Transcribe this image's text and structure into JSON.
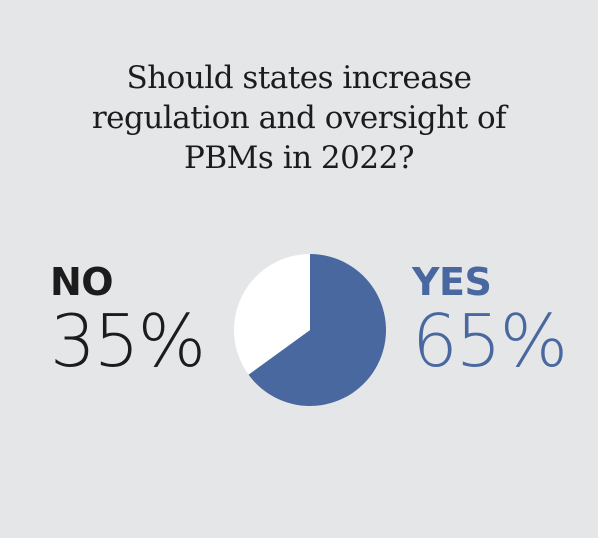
{
  "title_lines": [
    "Should states increase",
    "regulation and oversight of",
    "PBMs in 2022?"
  ],
  "colors": {
    "background": "#e5e6e8",
    "no": "#1c1c1c",
    "yes": "#4a68a0",
    "no_slice": "#ffffff",
    "yes_slice": "#4a68a0"
  },
  "chart_data": {
    "type": "pie",
    "title": "Should states increase regulation and oversight of PBMs in 2022?",
    "slices": [
      {
        "label": "NO",
        "display": "35%",
        "value": 35
      },
      {
        "label": "YES",
        "display": "65%",
        "value": 65
      }
    ]
  }
}
